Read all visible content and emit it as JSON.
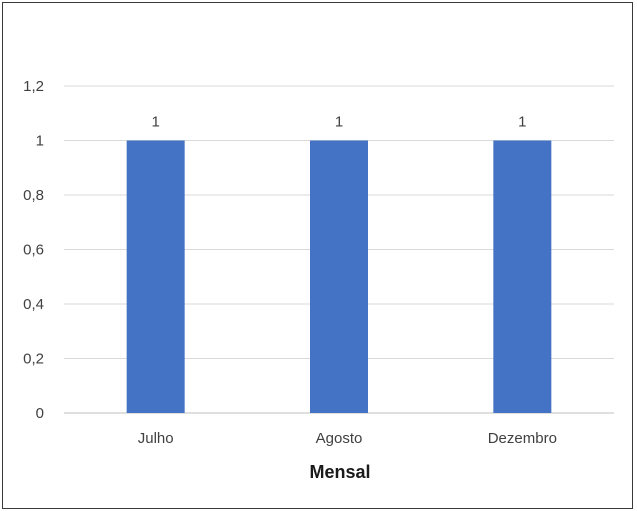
{
  "chart_data": {
    "type": "bar",
    "title": "",
    "xlabel": "Mensal",
    "ylabel": "",
    "categories": [
      "Julho",
      "Agosto",
      "Dezembro"
    ],
    "values": [
      1,
      1,
      1
    ],
    "data_labels": [
      "1",
      "1",
      "1"
    ],
    "ylim": [
      0,
      1.2
    ],
    "yticks": [
      0,
      0.2,
      0.4,
      0.6,
      0.8,
      1,
      1.2
    ],
    "ytick_labels": [
      "0",
      "0,2",
      "0,4",
      "0,6",
      "0,8",
      "1",
      "1,2"
    ],
    "grid": true,
    "legend": "none",
    "colors": {
      "bar": "#4472C4",
      "grid": "#d9d9d9",
      "axis": "#bfbfbf",
      "text": "#404040"
    }
  }
}
